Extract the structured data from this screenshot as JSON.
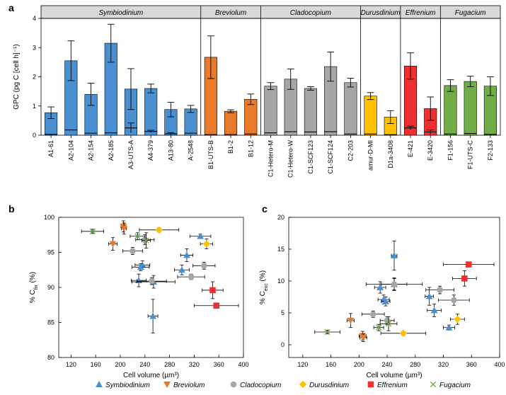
{
  "chart_data": [
    {
      "panel": "a",
      "type": "bar",
      "ylabel": "GPC (pg C [cell h]⁻¹)",
      "ylim": [
        0,
        4
      ],
      "yticks": [
        "0",
        "1",
        "2",
        "3",
        "4"
      ],
      "groups": [
        {
          "name": "Symbiodinium",
          "color": "#4a90d0",
          "count": 8
        },
        {
          "name": "Breviolum",
          "color": "#e87a2a",
          "count": 3
        },
        {
          "name": "Cladocopium",
          "color": "#a6a6a6",
          "count": 5
        },
        {
          "name": "Durusdinium",
          "color": "#ffc000",
          "count": 2
        },
        {
          "name": "Effrenium",
          "color": "#f03030",
          "count": 2
        },
        {
          "name": "Fugacium",
          "color": "#70ad47",
          "count": 3
        }
      ],
      "categories": [
        "A1-61",
        "A2-104",
        "A2-154",
        "A2-185",
        "A3-UTS-A",
        "A4-379",
        "A13-80",
        "A-2548",
        "B1-UTS-B",
        "B1-2",
        "B1-12",
        "C1-Hetero-M",
        "C1-Hetero-W",
        "C1-SCF123",
        "C1-SCF124",
        "C2-203",
        "amur-D-MI",
        "D1a-3408",
        "E-421",
        "E-3420",
        "F1-156",
        "F1-UTS-C",
        "F2-133"
      ],
      "values": [
        0.77,
        2.55,
        1.4,
        3.15,
        1.58,
        1.6,
        0.88,
        0.9,
        2.67,
        0.82,
        1.23,
        1.68,
        1.92,
        1.6,
        2.35,
        1.8,
        1.34,
        0.62,
        2.37,
        0.91,
        1.7,
        1.84,
        1.68
      ],
      "errors": [
        0.2,
        0.68,
        0.38,
        0.65,
        0.7,
        0.15,
        0.25,
        0.12,
        0.73,
        0.05,
        0.18,
        0.12,
        0.35,
        0.06,
        0.5,
        0.15,
        0.12,
        0.22,
        0.45,
        0.4,
        0.2,
        0.18,
        0.32
      ],
      "lower_values": [
        0.03,
        0.18,
        0.07,
        0.08,
        0.25,
        0.13,
        0.05,
        0.07,
        0.02,
        0.02,
        0.04,
        0.08,
        0.12,
        0.11,
        0.12,
        0.04,
        0.04,
        0.02,
        0.25,
        0.11,
        0.04,
        0.06,
        0.03
      ],
      "lower_errors": [
        0.01,
        0.02,
        0.02,
        0.02,
        0.17,
        0.04,
        0.04,
        0.02,
        0.01,
        0.01,
        0.01,
        0.03,
        0.02,
        0.02,
        0.02,
        0.01,
        0.02,
        0.01,
        0.06,
        0.07,
        0.01,
        0.03,
        0.01
      ]
    },
    {
      "panel": "b",
      "type": "scatter",
      "xlabel": "Cell volume (µm³)",
      "ylabel": "% C",
      "ylabel_sub": "fix",
      "ylabel_suffix": " (%)",
      "xlim": [
        100,
        400
      ],
      "ylim": [
        80,
        100
      ],
      "xticks": [
        "120",
        "160",
        "200",
        "240",
        "280",
        "320",
        "360",
        "400"
      ],
      "yticks": [
        "80",
        "85",
        "90",
        "95",
        "100"
      ],
      "series": [
        {
          "name": "Symbiodinium",
          "marker": "triangle-up",
          "color": "#4a90d0",
          "points": [
            [
              330,
              97.3
            ],
            [
              308,
              94.6
            ],
            [
              236,
              93.2
            ],
            [
              300,
              92.5
            ],
            [
              233,
              92.9
            ],
            [
              230,
              91.0
            ],
            [
              254,
              90.8
            ],
            [
              253,
              85.9
            ]
          ],
          "xerr": [
            17,
            10,
            12,
            12,
            14,
            12,
            35,
            8
          ],
          "yerr": [
            0.3,
            0.9,
            0.6,
            0.7,
            0.5,
            0.9,
            0.9,
            2.4
          ]
        },
        {
          "name": "Breviolum",
          "marker": "triangle-down",
          "color": "#e87a2a",
          "points": [
            [
              205,
              98.7
            ],
            [
              206,
              98.4
            ],
            [
              188,
              96.2
            ]
          ],
          "xerr": [
            4,
            4,
            7
          ],
          "yerr": [
            0.8,
            0.8,
            0.9
          ]
        },
        {
          "name": "Cladocopium",
          "marker": "circle",
          "color": "#a6a6a6",
          "points": [
            [
              240,
              96.8
            ],
            [
              220,
              95.2
            ],
            [
              336,
              93.1
            ],
            [
              315,
              91.5
            ],
            [
              251,
              90.9
            ]
          ],
          "xerr": [
            15,
            16,
            18,
            22,
            24
          ],
          "yerr": [
            0.7,
            0.5,
            0.5,
            0.4,
            0.5
          ]
        },
        {
          "name": "Durusdinium",
          "marker": "diamond",
          "color": "#ffc000",
          "points": [
            [
              263,
              98.2
            ],
            [
              340,
              96.2
            ]
          ],
          "xerr": [
            32,
            10
          ],
          "yerr": [
            0.3,
            0.7
          ]
        },
        {
          "name": "Effrenium",
          "marker": "square",
          "color": "#f03030",
          "points": [
            [
              350,
              89.6
            ],
            [
              356,
              87.4
            ]
          ],
          "xerr": [
            17,
            36
          ],
          "yerr": [
            1.2,
            0.3
          ]
        },
        {
          "name": "Fugacium",
          "marker": "x",
          "color": "#70ad47",
          "points": [
            [
              155,
              98.0
            ],
            [
              228,
              97.3
            ],
            [
              242,
              96.7
            ]
          ],
          "xerr": [
            18,
            12,
            7
          ],
          "yerr": [
            0.3,
            0.5,
            1.1
          ]
        }
      ]
    },
    {
      "panel": "c",
      "type": "scatter",
      "xlabel": "Cell volume (µm³)",
      "ylabel": "% C",
      "ylabel_sub": "exc",
      "ylabel_suffix": " (%)",
      "xlim": [
        100,
        400
      ],
      "ylim": [
        -2,
        20
      ],
      "xticks": [
        "120",
        "160",
        "200",
        "240",
        "280",
        "320",
        "360",
        "400"
      ],
      "yticks": [
        "0",
        "5",
        "10",
        "15",
        "20"
      ],
      "series": [
        {
          "name": "Symbiodinium",
          "marker": "triangle-up",
          "color": "#4a90d0",
          "points": [
            [
              250,
              14.0
            ],
            [
              230,
              9.0
            ],
            [
              250,
              9.5
            ],
            [
              235,
              7.1
            ],
            [
              300,
              7.6
            ],
            [
              238,
              6.8
            ],
            [
              307,
              5.4
            ],
            [
              328,
              2.7
            ]
          ],
          "xerr": [
            4,
            8,
            18,
            8,
            6,
            6,
            10,
            8
          ],
          "yerr": [
            2.3,
            0.9,
            0.9,
            0.7,
            1.4,
            0.7,
            1.0,
            0.4
          ]
        },
        {
          "name": "Breviolum",
          "marker": "triangle-down",
          "color": "#e87a2a",
          "points": [
            [
              188,
              3.8
            ],
            [
              205,
              1.4
            ],
            [
              206,
              1.1
            ]
          ],
          "xerr": [
            5,
            5,
            5
          ],
          "yerr": [
            1.1,
            0.7,
            0.6
          ]
        },
        {
          "name": "Cladocopium",
          "marker": "circle",
          "color": "#a6a6a6",
          "points": [
            [
              250,
              9.5
            ],
            [
              315,
              8.6
            ],
            [
              335,
              7.0
            ],
            [
              220,
              4.8
            ],
            [
              240,
              3.8
            ]
          ],
          "xerr": [
            40,
            20,
            22,
            16,
            10
          ],
          "yerr": [
            1.0,
            0.6,
            0.8,
            0.5,
            0.6
          ]
        },
        {
          "name": "Durusdinium",
          "marker": "diamond",
          "color": "#ffc000",
          "points": [
            [
              340,
              4.0
            ],
            [
              263,
              1.8
            ]
          ],
          "xerr": [
            10,
            32
          ],
          "yerr": [
            0.8,
            0.3
          ]
        },
        {
          "name": "Effrenium",
          "marker": "square",
          "color": "#f03030",
          "points": [
            [
              356,
              12.6
            ],
            [
              350,
              10.4
            ]
          ],
          "xerr": [
            36,
            17
          ],
          "yerr": [
            0.2,
            1.2
          ]
        },
        {
          "name": "Fugacium",
          "marker": "x",
          "color": "#70ad47",
          "points": [
            [
              155,
              2.0
            ],
            [
              228,
              2.7
            ],
            [
              242,
              3.3
            ]
          ],
          "xerr": [
            18,
            7,
            12
          ],
          "yerr": [
            0.3,
            0.5,
            1.1
          ]
        }
      ]
    }
  ],
  "legend": [
    {
      "label": "Symbiodinium",
      "marker": "triangle-up",
      "color": "#4a90d0"
    },
    {
      "label": "Breviolum",
      "marker": "triangle-down",
      "color": "#e87a2a"
    },
    {
      "label": "Cladocopium",
      "marker": "circle",
      "color": "#a6a6a6"
    },
    {
      "label": "Durusdinium",
      "marker": "diamond",
      "color": "#ffc000"
    },
    {
      "label": "Effrenium",
      "marker": "square",
      "color": "#f03030"
    },
    {
      "label": "Fugacium",
      "marker": "x",
      "color": "#70ad47"
    }
  ]
}
